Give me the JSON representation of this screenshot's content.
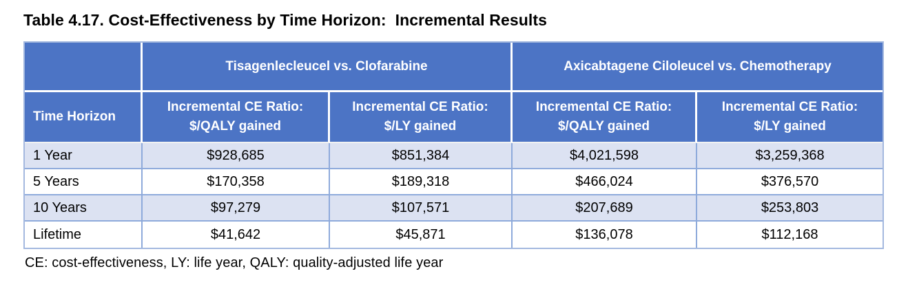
{
  "title": "Table 4.17. Cost-Effectiveness by Time Horizon:  Incremental Results",
  "footnote": "CE: cost-effectiveness, LY: life year, QALY: quality-adjusted life year",
  "colors": {
    "header_fill": "#4c74c5",
    "header_text": "#ffffff",
    "banded_row_fill": "#dce2f2",
    "body_grid_border": "#8eaadb",
    "outer_border": "#a3b8df"
  },
  "table": {
    "group_headers": [
      "Tisagenlecleucel vs. Clofarabine",
      "Axicabtagene Ciloleucel vs. Chemotherapy"
    ],
    "column_headers": [
      "Time Horizon",
      "Incremental CE Ratio:\n$/QALY gained",
      "Incremental CE Ratio:\n$/LY gained",
      "Incremental CE Ratio:\n$/QALY gained",
      "Incremental CE Ratio:\n$/LY gained"
    ],
    "rows": [
      {
        "label": "1 Year",
        "values": [
          "$928,685",
          "$851,384",
          "$4,021,598",
          "$3,259,368"
        ]
      },
      {
        "label": "5 Years",
        "values": [
          "$170,358",
          "$189,318",
          "$466,024",
          "$376,570"
        ]
      },
      {
        "label": "10 Years",
        "values": [
          "$97,279",
          "$107,571",
          "$207,689",
          "$253,803"
        ]
      },
      {
        "label": "Lifetime",
        "values": [
          "$41,642",
          "$45,871",
          "$136,078",
          "$112,168"
        ]
      }
    ]
  }
}
